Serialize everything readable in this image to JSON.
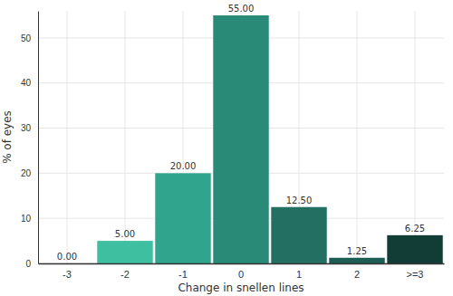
{
  "chart_data": {
    "type": "bar",
    "x_label": "Change in snellen lines",
    "y_label": "% of eyes",
    "categories": [
      "-3",
      "-2",
      "-1",
      "0",
      "1",
      "2",
      ">=3"
    ],
    "values": [
      0,
      5,
      20,
      55,
      12.5,
      1.25,
      6.25
    ],
    "value_labels": [
      "0.00",
      "5.00",
      "20.00",
      "55.00",
      "12.50",
      "1.25",
      "6.25"
    ],
    "colors": [
      "#45c9a9",
      "#3dbfa0",
      "#31a48d",
      "#2a8a78",
      "#236f62",
      "#1d5e54",
      "#123d37"
    ],
    "ylim": [
      0,
      56
    ],
    "yticks": [
      0,
      10,
      20,
      30,
      40,
      50
    ],
    "grid": true,
    "data_labels": true
  }
}
